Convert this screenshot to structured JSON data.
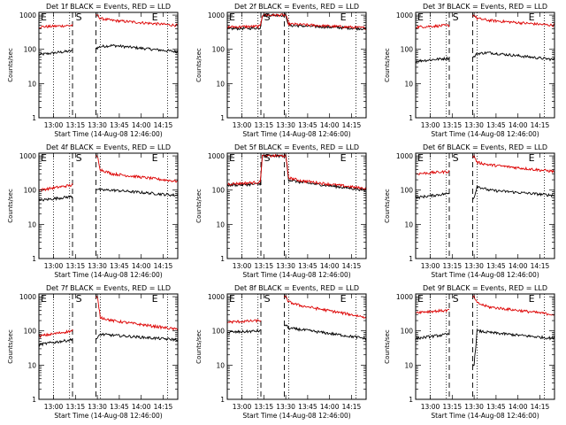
{
  "layout": {
    "rows": 3,
    "cols": 3
  },
  "common": {
    "xlabel": "Start Time (14-Aug-08 12:46:00)",
    "ylabel": "Counts/sec",
    "x_ticks": [
      "13:00",
      "13:15",
      "13:30",
      "13:45",
      "14:00",
      "14:15"
    ],
    "x_tick_minutes": [
      60,
      75,
      90,
      105,
      120,
      135
    ],
    "xlim": [
      50,
      145
    ],
    "ylim": [
      1,
      1200
    ],
    "y_ticks": [
      1,
      10,
      100,
      1000
    ],
    "y_tick_labels": [
      "1",
      "10",
      "100",
      "1000"
    ],
    "dotted_lines_min": [
      60,
      71,
      92,
      138
    ],
    "dashed_lines_min": [
      73,
      89
    ],
    "markers": [
      {
        "text": "E",
        "x": 50
      },
      {
        "text": "S",
        "x": 74
      },
      {
        "text": "E",
        "x": 126
      }
    ]
  },
  "colors": {
    "events": "#000000",
    "lld": "#dd0000"
  },
  "chart_data": [
    {
      "type": "line",
      "title": "Det 1f BLACK = Events, RED = LLD",
      "gap": [
        73,
        89
      ],
      "series": [
        {
          "name": "Events",
          "x": [
            50,
            72.5,
            90,
            92,
            100,
            145
          ],
          "values": [
            70,
            90,
            110,
            120,
            130,
            85
          ]
        },
        {
          "name": "LLD",
          "x": [
            50,
            72.5,
            90,
            92,
            100,
            145
          ],
          "values": [
            450,
            500,
            1000,
            800,
            700,
            500
          ]
        }
      ]
    },
    {
      "type": "line",
      "title": "Det 2f BLACK = Events, RED = LLD",
      "gap": [],
      "series": [
        {
          "name": "Events",
          "x": [
            50,
            72.5,
            74,
            85,
            90,
            92,
            145
          ],
          "values": [
            400,
            420,
            1000,
            1000,
            1000,
            500,
            400
          ]
        },
        {
          "name": "LLD",
          "x": [
            50,
            72.5,
            74,
            85,
            90,
            92,
            145
          ],
          "values": [
            450,
            470,
            1000,
            1000,
            1000,
            550,
            420
          ]
        }
      ]
    },
    {
      "type": "line",
      "title": "Det 3f BLACK = Events, RED = LLD",
      "gap": [
        73,
        89
      ],
      "series": [
        {
          "name": "Events",
          "x": [
            50,
            72.5,
            90,
            92,
            100,
            145
          ],
          "values": [
            45,
            55,
            60,
            75,
            80,
            50
          ]
        },
        {
          "name": "LLD",
          "x": [
            50,
            72.5,
            90,
            92,
            100,
            145
          ],
          "values": [
            450,
            500,
            1000,
            800,
            700,
            500
          ]
        }
      ]
    },
    {
      "type": "line",
      "title": "Det 4f BLACK = Events, RED = LLD",
      "gap": [
        73,
        89
      ],
      "series": [
        {
          "name": "Events",
          "x": [
            50,
            72.5,
            90,
            92,
            100,
            145
          ],
          "values": [
            50,
            65,
            110,
            100,
            100,
            70
          ]
        },
        {
          "name": "LLD",
          "x": [
            50,
            72.5,
            90,
            92,
            100,
            145
          ],
          "values": [
            100,
            140,
            1000,
            400,
            300,
            180
          ]
        }
      ]
    },
    {
      "type": "line",
      "title": "Det 5f BLACK = Events, RED = LLD",
      "gap": [],
      "series": [
        {
          "name": "Events",
          "x": [
            50,
            72.5,
            74,
            85,
            90,
            92,
            100,
            145
          ],
          "values": [
            140,
            150,
            1000,
            1000,
            1000,
            200,
            170,
            100
          ]
        },
        {
          "name": "LLD",
          "x": [
            50,
            72.5,
            74,
            85,
            90,
            92,
            100,
            145
          ],
          "values": [
            150,
            170,
            1000,
            1000,
            1000,
            230,
            190,
            110
          ]
        }
      ]
    },
    {
      "type": "line",
      "title": "Det 6f BLACK = Events, RED = LLD",
      "gap": [
        73,
        89
      ],
      "series": [
        {
          "name": "Events",
          "x": [
            50,
            72.5,
            90,
            92,
            100,
            145
          ],
          "values": [
            60,
            80,
            60,
            130,
            100,
            70
          ]
        },
        {
          "name": "LLD",
          "x": [
            50,
            72.5,
            90,
            92,
            100,
            145
          ],
          "values": [
            300,
            350,
            1000,
            650,
            550,
            350
          ]
        }
      ]
    },
    {
      "type": "line",
      "title": "Det 7f BLACK = Events, RED = LLD",
      "gap": [
        73,
        89
      ],
      "series": [
        {
          "name": "Events",
          "x": [
            50,
            72.5,
            90,
            92,
            100,
            145
          ],
          "values": [
            40,
            55,
            60,
            80,
            75,
            55
          ]
        },
        {
          "name": "LLD",
          "x": [
            50,
            72.5,
            90,
            92,
            100,
            145
          ],
          "values": [
            70,
            100,
            1000,
            250,
            200,
            110
          ]
        }
      ]
    },
    {
      "type": "line",
      "title": "Det 8f BLACK = Events, RED = LLD",
      "gap": [
        73,
        89
      ],
      "series": [
        {
          "name": "Events",
          "x": [
            50,
            72.5,
            90,
            92,
            100,
            145
          ],
          "values": [
            90,
            100,
            150,
            120,
            110,
            60
          ]
        },
        {
          "name": "LLD",
          "x": [
            50,
            72.5,
            90,
            92,
            100,
            145
          ],
          "values": [
            180,
            200,
            1000,
            700,
            550,
            250
          ]
        }
      ]
    },
    {
      "type": "line",
      "title": "Det 9f BLACK = Events, RED = LLD",
      "gap": [
        73,
        89
      ],
      "series": [
        {
          "name": "Events",
          "x": [
            50,
            72.5,
            90,
            92,
            100,
            145
          ],
          "values": [
            60,
            80,
            10,
            100,
            90,
            60
          ]
        },
        {
          "name": "LLD",
          "x": [
            50,
            72.5,
            90,
            92,
            100,
            145
          ],
          "values": [
            350,
            400,
            1000,
            650,
            500,
            300
          ]
        }
      ]
    }
  ]
}
